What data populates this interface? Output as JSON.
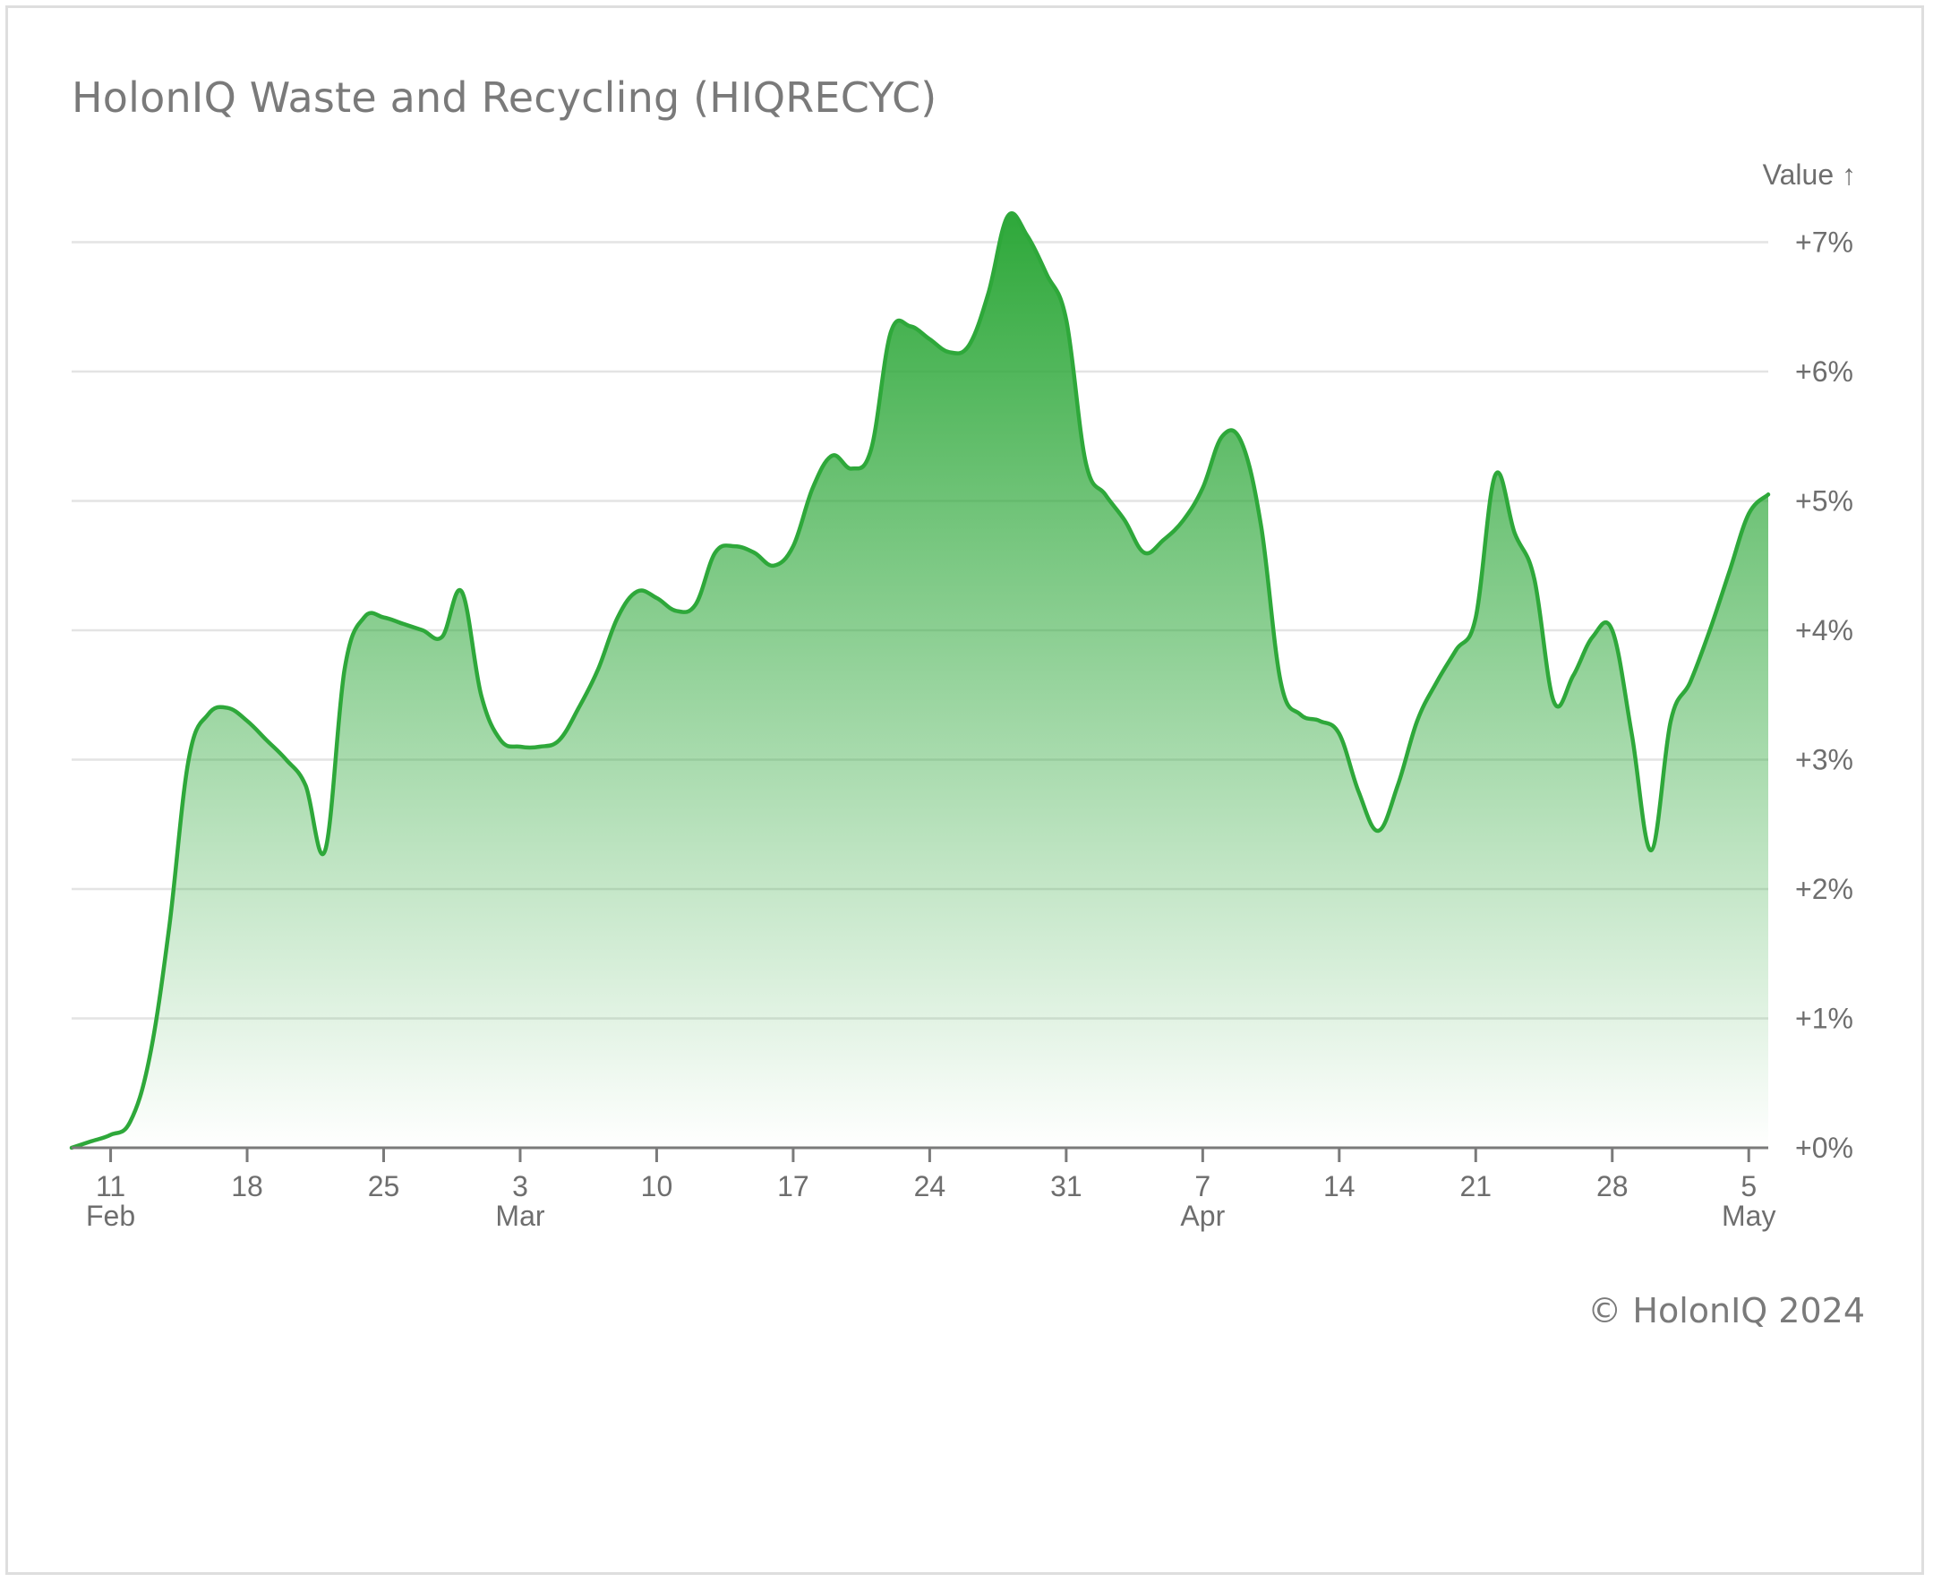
{
  "chart_data": {
    "type": "area",
    "title": "HolonIQ Waste and Recycling (HIQRECYC)",
    "ylabel": "Value ↑",
    "xlabel": "",
    "ylim": [
      0,
      7
    ],
    "xlim": [
      "2024-02-09",
      "2024-05-06"
    ],
    "grid": true,
    "legend": "none",
    "line_color": "#2ea83a",
    "fill_color": "#2ea83a",
    "y_ticks": [
      {
        "value": 0,
        "label": "+0%"
      },
      {
        "value": 1,
        "label": "+1%"
      },
      {
        "value": 2,
        "label": "+2%"
      },
      {
        "value": 3,
        "label": "+3%"
      },
      {
        "value": 4,
        "label": "+4%"
      },
      {
        "value": 5,
        "label": "+5%"
      },
      {
        "value": 6,
        "label": "+6%"
      },
      {
        "value": 7,
        "label": "+7%"
      }
    ],
    "x_ticks": [
      {
        "date": "2024-02-11",
        "label": "11",
        "month": "Feb"
      },
      {
        "date": "2024-02-18",
        "label": "18",
        "month": ""
      },
      {
        "date": "2024-02-25",
        "label": "25",
        "month": ""
      },
      {
        "date": "2024-03-03",
        "label": "3",
        "month": "Mar"
      },
      {
        "date": "2024-03-10",
        "label": "10",
        "month": ""
      },
      {
        "date": "2024-03-17",
        "label": "17",
        "month": ""
      },
      {
        "date": "2024-03-24",
        "label": "24",
        "month": ""
      },
      {
        "date": "2024-03-31",
        "label": "31",
        "month": ""
      },
      {
        "date": "2024-04-07",
        "label": "7",
        "month": "Apr"
      },
      {
        "date": "2024-04-14",
        "label": "14",
        "month": ""
      },
      {
        "date": "2024-04-21",
        "label": "21",
        "month": ""
      },
      {
        "date": "2024-04-28",
        "label": "28",
        "month": ""
      },
      {
        "date": "2024-05-05",
        "label": "5",
        "month": "May"
      }
    ],
    "series": [
      {
        "x": [
          "2024-02-09",
          "2024-02-10",
          "2024-02-11",
          "2024-02-12",
          "2024-02-13",
          "2024-02-14",
          "2024-02-15",
          "2024-02-16",
          "2024-02-17",
          "2024-02-18",
          "2024-02-19",
          "2024-02-20",
          "2024-02-21",
          "2024-02-22",
          "2024-02-23",
          "2024-02-24",
          "2024-02-25",
          "2024-02-26",
          "2024-02-27",
          "2024-02-28",
          "2024-02-29",
          "2024-03-01",
          "2024-03-02",
          "2024-03-03",
          "2024-03-04",
          "2024-03-05",
          "2024-03-06",
          "2024-03-07",
          "2024-03-08",
          "2024-03-09",
          "2024-03-10",
          "2024-03-11",
          "2024-03-12",
          "2024-03-13",
          "2024-03-14",
          "2024-03-15",
          "2024-03-16",
          "2024-03-17",
          "2024-03-18",
          "2024-03-19",
          "2024-03-20",
          "2024-03-21",
          "2024-03-22",
          "2024-03-23",
          "2024-03-24",
          "2024-03-25",
          "2024-03-26",
          "2024-03-27",
          "2024-03-28",
          "2024-03-29",
          "2024-03-30",
          "2024-03-31",
          "2024-04-01",
          "2024-04-02",
          "2024-04-03",
          "2024-04-04",
          "2024-04-05",
          "2024-04-06",
          "2024-04-07",
          "2024-04-08",
          "2024-04-09",
          "2024-04-10",
          "2024-04-11",
          "2024-04-12",
          "2024-04-13",
          "2024-04-14",
          "2024-04-15",
          "2024-04-16",
          "2024-04-17",
          "2024-04-18",
          "2024-04-19",
          "2024-04-20",
          "2024-04-21",
          "2024-04-22",
          "2024-04-23",
          "2024-04-24",
          "2024-04-25",
          "2024-04-26",
          "2024-04-27",
          "2024-04-28",
          "2024-04-29",
          "2024-04-30",
          "2024-05-01",
          "2024-05-02",
          "2024-05-03",
          "2024-05-04",
          "2024-05-05",
          "2024-05-06"
        ],
        "values": [
          0.0,
          0.05,
          0.1,
          0.2,
          0.7,
          1.7,
          3.0,
          3.35,
          3.4,
          3.3,
          3.15,
          3.0,
          2.8,
          2.3,
          3.7,
          4.1,
          4.1,
          4.05,
          4.0,
          3.95,
          4.3,
          3.5,
          3.15,
          3.1,
          3.1,
          3.15,
          3.4,
          3.7,
          4.1,
          4.3,
          4.25,
          4.15,
          4.2,
          4.6,
          4.65,
          4.6,
          4.5,
          4.65,
          5.1,
          5.35,
          5.25,
          5.4,
          6.3,
          6.35,
          6.25,
          6.15,
          6.2,
          6.6,
          7.2,
          7.05,
          6.75,
          6.4,
          5.3,
          5.05,
          4.85,
          4.6,
          4.7,
          4.85,
          5.1,
          5.5,
          5.45,
          4.8,
          3.6,
          3.35,
          3.3,
          3.2,
          2.75,
          2.45,
          2.8,
          3.3,
          3.6,
          3.85,
          4.1,
          5.2,
          4.75,
          4.4,
          3.45,
          3.65,
          3.95,
          4.0,
          3.2,
          2.3,
          3.3,
          3.6,
          4.0,
          4.45,
          4.9,
          5.05
        ]
      }
    ]
  },
  "footer": {
    "copyright": "© HolonIQ 2024"
  }
}
